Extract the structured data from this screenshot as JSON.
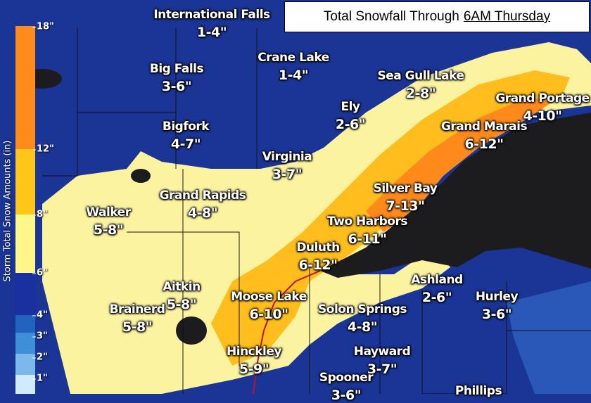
{
  "title": {
    "prefix": "Total Snowfall Through",
    "underlined": "6AM Thursday"
  },
  "legend": {
    "title": "Storm Total Snow Amounts (in)",
    "ticks": [
      "18\"",
      "12\"",
      "8\"",
      "6\"",
      "4\"",
      "3\"",
      "2\"",
      "1\""
    ],
    "colors": {
      "12-18": "#ff8c1a",
      "8-12": "#ffc61a",
      "6-8": "#fff78a",
      "4-6": "#1a2fa0",
      "3-4": "#2064c0",
      "2-3": "#3f8ed8",
      "1-2": "#7bb8ec",
      "0-1": "#d0ebff"
    }
  },
  "colors": {
    "background": "#1b3596",
    "lake": "#1c1c1e",
    "light_yellow": "#fbf3a0",
    "yellow_orange": "#ffbe1e",
    "orange": "#ff8a1c"
  },
  "locations": [
    {
      "name": "International Falls",
      "amount": "1-4\""
    },
    {
      "name": "Big Falls",
      "amount": "3-6\""
    },
    {
      "name": "Crane Lake",
      "amount": "1-4\""
    },
    {
      "name": "Sea Gull Lake",
      "amount": "2-8\""
    },
    {
      "name": "Grand Portage",
      "amount": "4-10\""
    },
    {
      "name": "Ely",
      "amount": "2-6\""
    },
    {
      "name": "Grand Marais",
      "amount": "6-12\""
    },
    {
      "name": "Bigfork",
      "amount": "4-7\""
    },
    {
      "name": "Virginia",
      "amount": "3-7\""
    },
    {
      "name": "Silver Bay",
      "amount": "7-13\""
    },
    {
      "name": "Grand Rapids",
      "amount": "4-8\""
    },
    {
      "name": "Walker",
      "amount": "5-8\""
    },
    {
      "name": "Two Harbors",
      "amount": "6-11\""
    },
    {
      "name": "Duluth",
      "amount": "6-12\""
    },
    {
      "name": "Ashland",
      "amount": "2-6\""
    },
    {
      "name": "Aitkin",
      "amount": "5-8\""
    },
    {
      "name": "Moose Lake",
      "amount": "6-10\""
    },
    {
      "name": "Hurley",
      "amount": "3-6\""
    },
    {
      "name": "Brainerd",
      "amount": "5-8\""
    },
    {
      "name": "Solon Springs",
      "amount": "4-8\""
    },
    {
      "name": "Hinckley",
      "amount": "5-9\""
    },
    {
      "name": "Hayward",
      "amount": "3-7\""
    },
    {
      "name": "Spooner",
      "amount": "3-6\""
    },
    {
      "name": "Phillips",
      "amount": ""
    }
  ]
}
